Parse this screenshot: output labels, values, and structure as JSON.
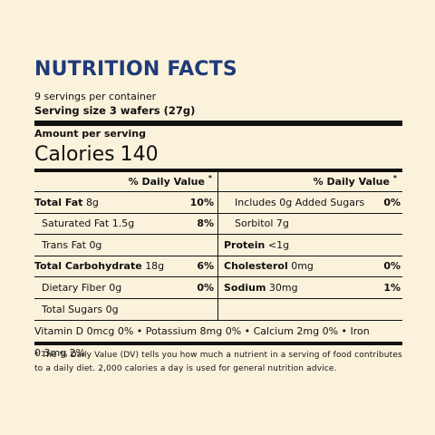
{
  "title": "NUTRITION FACTS",
  "servings_per_container": "9 servings per container",
  "serving_size": "Serving size 3 wafers (27g)",
  "amount_per_serving": "Amount per serving",
  "calories": {
    "label": "Calories",
    "value": "140"
  },
  "dv_header": "% Daily Value",
  "dv_asterisk": "*",
  "left_rows": [
    {
      "label": "Total Fat",
      "amount": "8g",
      "pct": "10%"
    },
    {
      "label": "Saturated Fat",
      "amount": "1.5g",
      "pct": "8%"
    },
    {
      "label": "Trans Fat",
      "amount": "0g",
      "pct": ""
    },
    {
      "label": "Total Carbohydrate",
      "amount": "18g",
      "pct": "6%"
    },
    {
      "label": "Dietary Fiber",
      "amount": "0g",
      "pct": "0%"
    },
    {
      "label": "Total Sugars",
      "amount": "0g",
      "pct": ""
    }
  ],
  "right_rows": [
    {
      "label": "Includes 0g Added Sugars",
      "amount": "",
      "pct": "0%"
    },
    {
      "label": "Sorbitol",
      "amount": "7g",
      "pct": ""
    },
    {
      "label": "Protein",
      "amount": "<1g",
      "pct": ""
    },
    {
      "label": "Cholesterol",
      "amount": "0mg",
      "pct": "0%"
    },
    {
      "label": "Sodium",
      "amount": "30mg",
      "pct": "1%"
    }
  ],
  "vitamins": "Vitamin D 0mcg 0% • Potassium 8mg 0% • Calcium 2mg 0% • Iron 0.3mg 2%",
  "footnote": "* The % Daily Value (DV) tells you how much a nutrient in a serving of food contributes to a daily diet. 2,000 calories a day is used for general nutrition advice."
}
